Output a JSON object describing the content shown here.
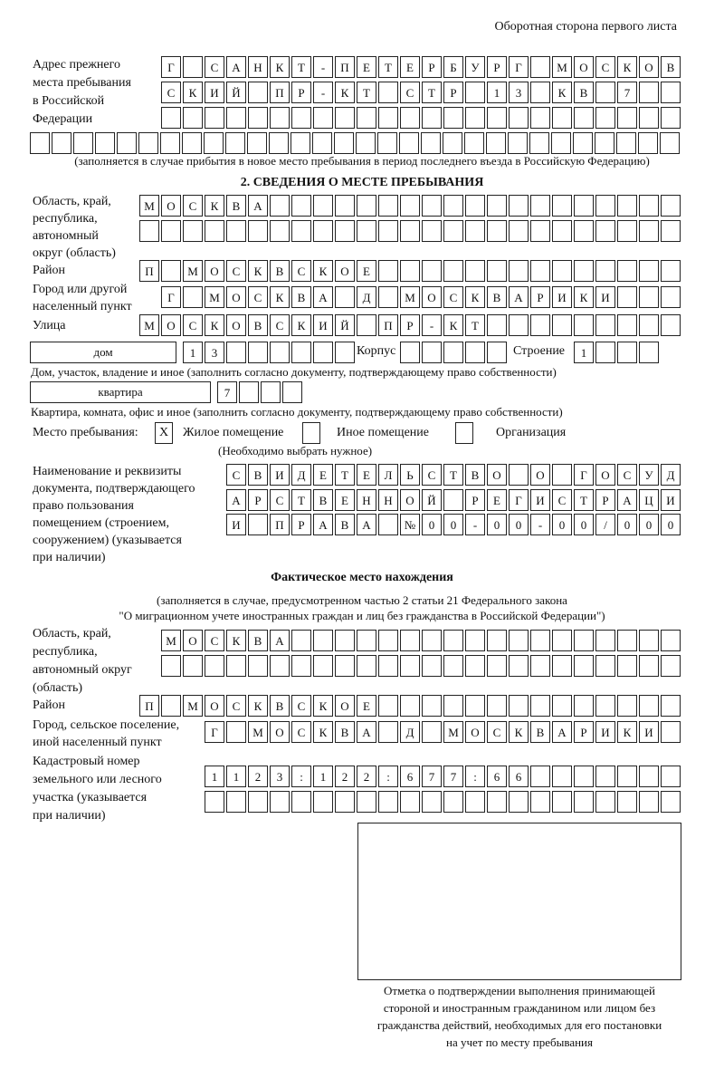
{
  "header": {
    "page_side": "Оборотная сторона первого листа"
  },
  "prev_address": {
    "label": [
      "Адрес прежнего",
      "места пребывания",
      "в Российской",
      "Федерации"
    ],
    "rows": [
      [
        "Г",
        "",
        "С",
        "А",
        "Н",
        "К",
        "Т",
        "-",
        "П",
        "Е",
        "Т",
        "Е",
        "Р",
        "Б",
        "У",
        "Р",
        "Г",
        "",
        "М",
        "О",
        "С",
        "К",
        "О",
        "В"
      ],
      [
        "С",
        "К",
        "И",
        "Й",
        "",
        "П",
        "Р",
        "-",
        "К",
        "Т",
        "",
        "С",
        "Т",
        "Р",
        "",
        "1",
        "3",
        "",
        "К",
        "В",
        "",
        "7",
        "",
        ""
      ],
      [
        "",
        "",
        "",
        "",
        "",
        "",
        "",
        "",
        "",
        "",
        "",
        "",
        "",
        "",
        "",
        "",
        "",
        "",
        "",
        "",
        "",
        "",
        "",
        ""
      ],
      [
        "",
        "",
        "",
        "",
        "",
        "",
        "",
        "",
        "",
        "",
        "",
        "",
        "",
        "",
        "",
        "",
        "",
        "",
        "",
        "",
        "",
        "",
        "",
        "",
        "",
        "",
        "",
        "",
        "",
        ""
      ]
    ],
    "note": "(заполняется в случае прибытия в новое место пребывания в период последнего въезда в Российскую Федерацию)"
  },
  "section2": {
    "title": "2. СВЕДЕНИЯ О МЕСТЕ ПРЕБЫВАНИЯ",
    "region_label": [
      "Область, край,",
      "республика,",
      "автономный",
      "округ (область)"
    ],
    "region_rows": [
      [
        "М",
        "О",
        "С",
        "К",
        "В",
        "А",
        "",
        "",
        "",
        "",
        "",
        "",
        "",
        "",
        "",
        "",
        "",
        "",
        "",
        "",
        "",
        "",
        "",
        "",
        ""
      ],
      [
        "",
        "",
        "",
        "",
        "",
        "",
        "",
        "",
        "",
        "",
        "",
        "",
        "",
        "",
        "",
        "",
        "",
        "",
        "",
        "",
        "",
        "",
        "",
        "",
        ""
      ]
    ],
    "district_label": "Район",
    "district_row": [
      "П",
      "",
      "М",
      "О",
      "С",
      "К",
      "В",
      "С",
      "К",
      "О",
      "Е",
      "",
      "",
      "",
      "",
      "",
      "",
      "",
      "",
      "",
      "",
      "",
      "",
      "",
      ""
    ],
    "city_label": [
      "Город или другой",
      "населенный пункт"
    ],
    "city_row": [
      "Г",
      "",
      "М",
      "О",
      "С",
      "К",
      "В",
      "А",
      "",
      "Д",
      "",
      "М",
      "О",
      "С",
      "К",
      "В",
      "А",
      "Р",
      "И",
      "К",
      "И",
      "",
      "",
      ""
    ],
    "street_label": "Улица",
    "street_row": [
      "М",
      "О",
      "С",
      "К",
      "О",
      "В",
      "С",
      "К",
      "И",
      "Й",
      "",
      "П",
      "Р",
      "-",
      "К",
      "Т",
      "",
      "",
      "",
      "",
      "",
      "",
      "",
      "",
      ""
    ],
    "house_type": "дом",
    "house_number": [
      "1",
      "3",
      "",
      "",
      "",
      "",
      "",
      ""
    ],
    "korpus_label": "Корпус",
    "korpus": [
      "",
      "",
      "",
      "",
      ""
    ],
    "building_label": "Строение",
    "building": [
      "1",
      "",
      "",
      ""
    ],
    "house_note": "Дом, участок, владение и иное (заполнить согласно документу, подтверждающему право собственности)",
    "apt_type": "квартира",
    "apt_number": [
      "7",
      "",
      "",
      ""
    ],
    "apt_note": "Квартира, комната, офис и иное (заполнить согласно документу, подтверждающему право собственности)",
    "stay_label": "Место пребывания:",
    "stay_options": [
      {
        "label": "Жилое помещение",
        "mark": "X"
      },
      {
        "label": "Иное помещение",
        "mark": ""
      },
      {
        "label": "Организация",
        "mark": ""
      }
    ],
    "stay_note": "(Необходимо выбрать нужное)",
    "doc_label": [
      "Наименование и реквизиты",
      "документа, подтверждающего",
      "право пользования",
      "помещением (строением,",
      "сооружением) (указывается",
      "при наличии)"
    ],
    "doc_rows": [
      [
        "С",
        "В",
        "И",
        "Д",
        "Е",
        "Т",
        "Е",
        "Л",
        "Ь",
        "С",
        "Т",
        "В",
        "О",
        "",
        "О",
        "",
        "Г",
        "О",
        "С",
        "У",
        "Д"
      ],
      [
        "А",
        "Р",
        "С",
        "Т",
        "В",
        "Е",
        "Н",
        "Н",
        "О",
        "Й",
        "",
        "Р",
        "Е",
        "Г",
        "И",
        "С",
        "Т",
        "Р",
        "А",
        "Ц",
        "И"
      ],
      [
        "И",
        "",
        "П",
        "Р",
        "А",
        "В",
        "А",
        "",
        "№",
        "0",
        "0",
        "-",
        "0",
        "0",
        "-",
        "0",
        "0",
        "/",
        "0",
        "0",
        "0"
      ]
    ]
  },
  "actual": {
    "title": "Фактическое место нахождения",
    "note1": "(заполняется в случае, предусмотренном частью 2 статьи 21 Федерального закона",
    "note2": "\"О миграционном учете иностранных граждан и лиц без гражданства в Российской Федерации\")",
    "region_label": [
      "Область, край,",
      "республика,",
      "автономный округ",
      "(область)"
    ],
    "region_rows": [
      [
        "М",
        "О",
        "С",
        "К",
        "В",
        "А",
        "",
        "",
        "",
        "",
        "",
        "",
        "",
        "",
        "",
        "",
        "",
        "",
        "",
        "",
        "",
        "",
        "",
        ""
      ],
      [
        "",
        "",
        "",
        "",
        "",
        "",
        "",
        "",
        "",
        "",
        "",
        "",
        "",
        "",
        "",
        "",
        "",
        "",
        "",
        "",
        "",
        "",
        "",
        ""
      ]
    ],
    "district_label": "Район",
    "district_row": [
      "П",
      "",
      "М",
      "О",
      "С",
      "К",
      "В",
      "С",
      "К",
      "О",
      "Е",
      "",
      "",
      "",
      "",
      "",
      "",
      "",
      "",
      "",
      "",
      "",
      "",
      "",
      ""
    ],
    "city_label": [
      "Город, сельское поселение,",
      "иной населенный пункт"
    ],
    "city_row": [
      "Г",
      "",
      "М",
      "О",
      "С",
      "К",
      "В",
      "А",
      "",
      "Д",
      "",
      "М",
      "О",
      "С",
      "К",
      "В",
      "А",
      "Р",
      "И",
      "К",
      "И",
      ""
    ],
    "cadastre_label": [
      "Кадастровый номер",
      "земельного или лесного",
      "участка (указывается",
      "при наличии)"
    ],
    "cadastre_rows": [
      [
        "1",
        "1",
        "2",
        "3",
        ":",
        "1",
        "2",
        "2",
        ":",
        "6",
        "7",
        "7",
        ":",
        "6",
        "6",
        "",
        "",
        "",
        "",
        "",
        "",
        ""
      ],
      [
        "",
        "",
        "",
        "",
        "",
        "",
        "",
        "",
        "",
        "",
        "",
        "",
        "",
        "",
        "",
        "",
        "",
        "",
        "",
        "",
        "",
        ""
      ]
    ]
  },
  "stamp": {
    "caption": [
      "Отметка о подтверждении выполнения принимающей",
      "стороной и иностранным гражданином или лицом без",
      "гражданства действий, необходимых для его постановки",
      "на учет по месту пребывания"
    ]
  }
}
